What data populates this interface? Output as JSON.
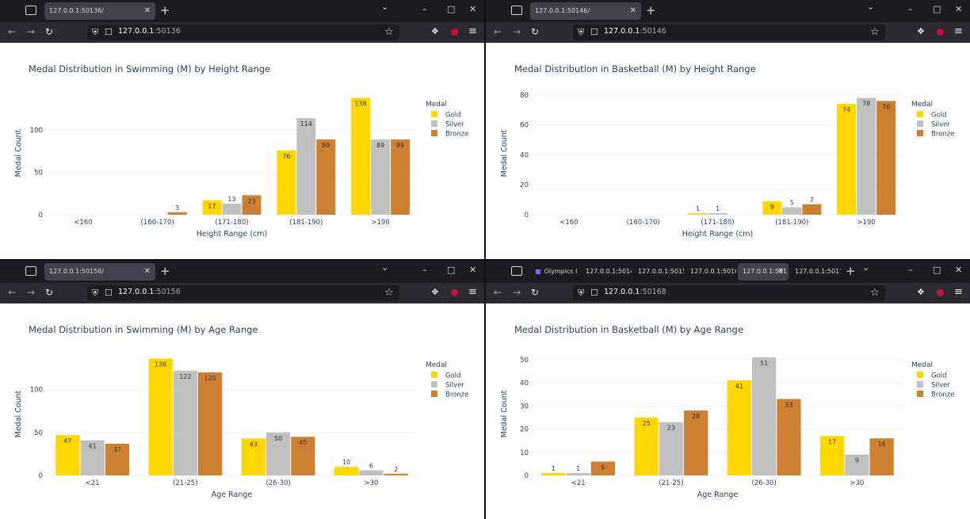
{
  "windows": [
    {
      "id": "w1",
      "tabs": [
        {
          "label": "127.0.0.1:50136/",
          "active": true
        }
      ],
      "url_host": "127.0.0.1",
      "url_port": ":50136",
      "chart_data": {
        "type": "bar",
        "title": "Medal Distribution in Swimming (M) by Height Range",
        "xlabel": "Height Range (cm)",
        "ylabel": "Medal Count",
        "categories": [
          "<160",
          "(160-170)",
          "(171-180)",
          "(181-190)",
          ">190"
        ],
        "series": [
          {
            "name": "Gold",
            "values": [
              0,
              0,
              17,
              76,
              138
            ]
          },
          {
            "name": "Silver",
            "values": [
              0,
              0,
              13,
              114,
              89
            ]
          },
          {
            "name": "Bronze",
            "values": [
              0,
              3,
              23,
              89,
              89
            ]
          }
        ],
        "yticks": [
          0,
          50,
          100
        ],
        "ylim": [
          0,
          145
        ],
        "legend_title": "Medal",
        "legend": "top-right",
        "grid": true
      }
    },
    {
      "id": "w2",
      "tabs": [
        {
          "label": "127.0.0.1:50146/",
          "active": true
        }
      ],
      "url_host": "127.0.0.1",
      "url_port": ":50146",
      "chart_data": {
        "type": "bar",
        "title": "Medal Distribution in Basketball (M) by Height Range",
        "xlabel": "Height Range (cm)",
        "ylabel": "Medal Count",
        "categories": [
          "<160",
          "(160-170)",
          "(171-180)",
          "(181-190)",
          ">190"
        ],
        "series": [
          {
            "name": "Gold",
            "values": [
              0,
              0,
              1,
              9,
              74
            ]
          },
          {
            "name": "Silver",
            "values": [
              0,
              0,
              1,
              5,
              78
            ]
          },
          {
            "name": "Bronze",
            "values": [
              0,
              0,
              0,
              7,
              76
            ]
          }
        ],
        "yticks": [
          0,
          20,
          40,
          60,
          80
        ],
        "ylim": [
          0,
          82
        ],
        "legend_title": "Medal",
        "legend": "top-right",
        "grid": true
      }
    },
    {
      "id": "w3",
      "tabs": [
        {
          "label": "127.0.0.1:50156/",
          "active": true
        }
      ],
      "url_host": "127.0.0.1",
      "url_port": ":50156",
      "chart_data": {
        "type": "bar",
        "title": "Medal Distribution in Swimming (M) by Age Range",
        "xlabel": "Age Range",
        "ylabel": "Medal Count",
        "categories": [
          "<21",
          "(21-25)",
          "(26-30)",
          ">30"
        ],
        "series": [
          {
            "name": "Gold",
            "values": [
              47,
              136,
              43,
              10
            ]
          },
          {
            "name": "Silver",
            "values": [
              41,
              122,
              50,
              6
            ]
          },
          {
            "name": "Bronze",
            "values": [
              37,
              120,
              45,
              2
            ]
          }
        ],
        "yticks": [
          0,
          50,
          100
        ],
        "ylim": [
          0,
          143
        ],
        "legend_title": "Medal",
        "legend": "top-right",
        "grid": true
      }
    },
    {
      "id": "w4",
      "tabs": [
        {
          "label": "Olympics I",
          "active": false
        },
        {
          "label": "127.0.0.1:5014",
          "active": false
        },
        {
          "label": "127.0.0.1:5015",
          "active": false
        },
        {
          "label": "127.0.0.1:5016",
          "active": false
        },
        {
          "label": "127.0.0.1:501",
          "active": true
        },
        {
          "label": "127.0.0.1:5017",
          "active": false
        }
      ],
      "url_host": "127.0.0.1",
      "url_port": ":50168",
      "chart_data": {
        "type": "bar",
        "title": "Medal Distribution in Basketball (M) by Age Range",
        "xlabel": "Age Range",
        "ylabel": "Medal Count",
        "categories": [
          "<21",
          "(21-25)",
          "(26-30)",
          ">30"
        ],
        "series": [
          {
            "name": "Gold",
            "values": [
              1,
              25,
              41,
              17
            ]
          },
          {
            "name": "Silver",
            "values": [
              1,
              23,
              51,
              9
            ]
          },
          {
            "name": "Bronze",
            "values": [
              6,
              28,
              33,
              16
            ]
          }
        ],
        "yticks": [
          0,
          10,
          20,
          30,
          40,
          50
        ],
        "ylim": [
          0,
          53
        ],
        "legend_title": "Medal",
        "legend": "top-right",
        "grid": true
      }
    }
  ],
  "colors": {
    "Gold": "#FFD700",
    "Silver": "#C0C0C0",
    "Bronze": "#CD7F32",
    "text": "#2a3f5f",
    "grid": "#ebf0f8"
  },
  "icons": {
    "back": "arrow-left-icon",
    "forward": "arrow-right-icon",
    "reload": "reload-icon",
    "shield": "shield-icon",
    "page": "page-icon",
    "star": "star-icon",
    "extensions": "puzzle-icon",
    "ublock": "ublock-icon",
    "menu": "hamburger-icon"
  }
}
